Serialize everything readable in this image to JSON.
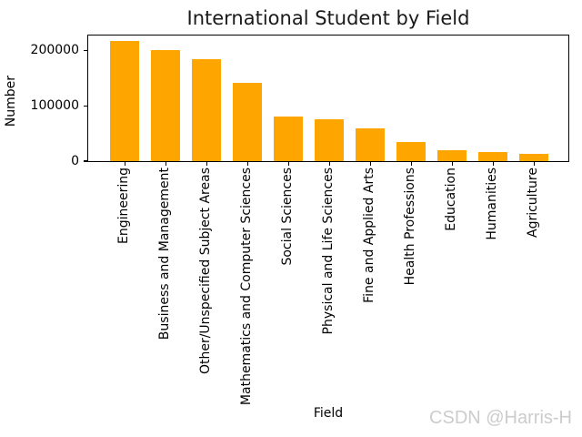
{
  "chart": {
    "title": "International Student by Field",
    "xlabel": "Field",
    "ylabel": "Number",
    "watermark": "CSDN @Harris-H"
  },
  "chart_data": {
    "type": "bar",
    "title": "International Student by Field",
    "xlabel": "Field",
    "ylabel": "Number",
    "categories": [
      "Engineering",
      "Business and Management",
      "Other/Unspecified Subject Areas",
      "Mathematics and Computer Sciences",
      "Social Sciences",
      "Physical and Life Sciences",
      "Fine and Applied Arts",
      "Health Professions",
      "Education",
      "Humanities",
      "Agriculture"
    ],
    "values": [
      217000,
      200000,
      185000,
      142000,
      80000,
      76000,
      59000,
      35000,
      19000,
      17000,
      13000
    ],
    "yticks": [
      0,
      100000,
      200000
    ],
    "ylim": [
      0,
      227000
    ],
    "x_tick_rotation": 90,
    "grid": false,
    "legend": "none",
    "bar_color": "#FFA500"
  },
  "colors": {
    "bar": "#FFA500",
    "watermark": "#cccccc",
    "axis": "#000000",
    "background": "#ffffff"
  }
}
